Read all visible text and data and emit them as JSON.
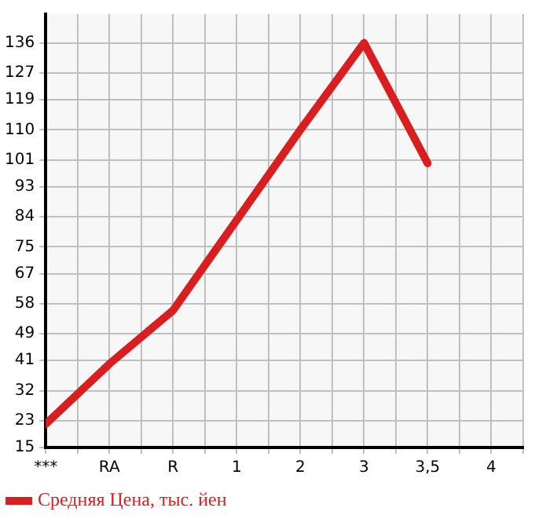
{
  "chart_data": {
    "type": "line",
    "categories": [
      "***",
      "RA",
      "R",
      "1",
      "2",
      "3",
      "3,5",
      "4"
    ],
    "series": [
      {
        "name": "Средняя Цена, тыс. йен",
        "color": "#d81e1e",
        "values": [
          22,
          40,
          56,
          83,
          110,
          136,
          100,
          null
        ]
      }
    ],
    "ylim": [
      15,
      144.6
    ],
    "yticks": [
      15,
      23,
      32,
      41,
      49,
      58,
      67,
      75,
      84,
      93,
      101,
      110,
      119,
      127,
      136
    ],
    "grid": true,
    "legend": "bottom left",
    "marker": "none"
  }
}
